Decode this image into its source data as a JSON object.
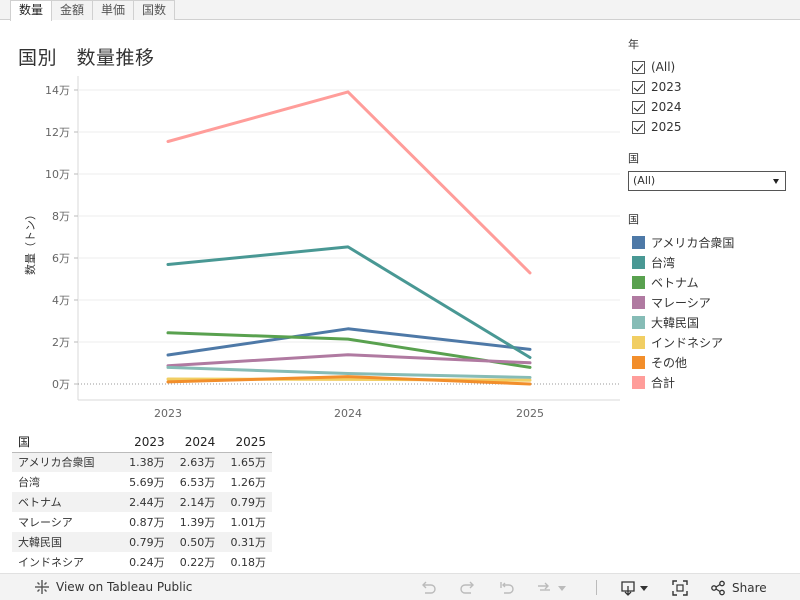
{
  "tabs": [
    {
      "label": "数量",
      "active": true
    },
    {
      "label": "金額",
      "active": false
    },
    {
      "label": "単価",
      "active": false
    },
    {
      "label": "国数",
      "active": false
    }
  ],
  "page_title": "国別　数量推移",
  "chart_data": {
    "type": "line",
    "title": "国別　数量推移",
    "ylabel": "数量（トン）",
    "xlabel": "",
    "x": [
      "2023",
      "2024",
      "2025"
    ],
    "ylim": [
      0,
      140000
    ],
    "yticks": [
      0,
      20000,
      40000,
      60000,
      80000,
      100000,
      120000,
      140000
    ],
    "ytick_labels": [
      "0万",
      "2万",
      "4万",
      "6万",
      "8万",
      "10万",
      "12万",
      "14万"
    ],
    "grid": true,
    "legend_placement": "right",
    "series": [
      {
        "name": "アメリカ合衆国",
        "color": "#4e79a7",
        "values": [
          13800,
          26300,
          16500
        ]
      },
      {
        "name": "台湾",
        "color": "#499894",
        "values": [
          56900,
          65300,
          12600
        ]
      },
      {
        "name": "ベトナム",
        "color": "#59a14f",
        "values": [
          24400,
          21400,
          7900
        ]
      },
      {
        "name": "マレーシア",
        "color": "#b07aa1",
        "values": [
          8700,
          13900,
          10100
        ]
      },
      {
        "name": "大韓民国",
        "color": "#86bcb6",
        "values": [
          7900,
          5000,
          3100
        ]
      },
      {
        "name": "インドネシア",
        "color": "#f1ce63",
        "values": [
          2400,
          2200,
          1800
        ]
      },
      {
        "name": "その他",
        "color": "#f28e2b",
        "values": [
          1000,
          3500,
          0
        ]
      },
      {
        "name": "合計",
        "color": "#ff9d9a",
        "values": [
          115500,
          139100,
          52900
        ]
      }
    ]
  },
  "filters": {
    "year": {
      "title": "年",
      "options": [
        {
          "label": "(All)",
          "checked": true
        },
        {
          "label": "2023",
          "checked": true
        },
        {
          "label": "2024",
          "checked": true
        },
        {
          "label": "2025",
          "checked": true
        }
      ]
    },
    "country": {
      "title": "国",
      "value": "(All)"
    },
    "legend_title": "国"
  },
  "table": {
    "headers": [
      "国",
      "2023",
      "2024",
      "2025"
    ],
    "rows": [
      [
        "アメリカ合衆国",
        "1.38万",
        "2.63万",
        "1.65万"
      ],
      [
        "台湾",
        "5.69万",
        "6.53万",
        "1.26万"
      ],
      [
        "ベトナム",
        "2.44万",
        "2.14万",
        "0.79万"
      ],
      [
        "マレーシア",
        "0.87万",
        "1.39万",
        "1.01万"
      ],
      [
        "大韓民国",
        "0.79万",
        "0.50万",
        "0.31万"
      ],
      [
        "インドネシア",
        "0.24万",
        "0.22万",
        "0.18万"
      ]
    ]
  },
  "toolbar": {
    "view_on_label": "View on Tableau Public",
    "share_label": "Share"
  }
}
